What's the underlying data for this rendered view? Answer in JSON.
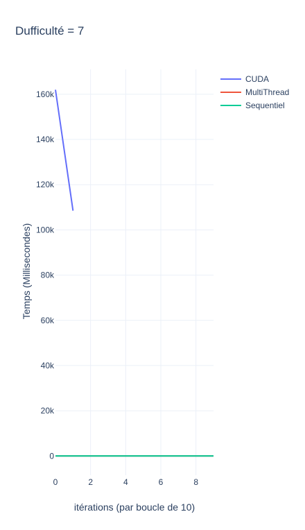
{
  "chart_data": {
    "type": "line",
    "title": "Dufficulté = 7",
    "xlabel": "itérations (par boucle de 10)",
    "ylabel": "Temps (Millisecondes)",
    "xlim": [
      0,
      9
    ],
    "ylim": [
      -8500,
      171000
    ],
    "xticks": [
      0,
      2,
      4,
      6,
      8
    ],
    "xtick_labels": [
      "0",
      "2",
      "4",
      "6",
      "8"
    ],
    "yticks": [
      0,
      20000,
      40000,
      60000,
      80000,
      100000,
      120000,
      140000,
      160000
    ],
    "ytick_labels": [
      "0",
      "20k",
      "40k",
      "60k",
      "80k",
      "100k",
      "120k",
      "140k",
      "160k"
    ],
    "grid": true,
    "legend_position": "top-right",
    "series": [
      {
        "name": "CUDA",
        "color": "#636efa",
        "x": [
          0,
          1
        ],
        "y": [
          162000,
          108500
        ]
      },
      {
        "name": "MultiThread",
        "color": "#ef553b",
        "x": [
          0,
          1,
          2,
          3,
          4,
          5,
          6,
          7,
          8,
          9
        ],
        "y": [
          0,
          0,
          0,
          0,
          0,
          0,
          0,
          0,
          0,
          0
        ]
      },
      {
        "name": "Sequentiel",
        "color": "#00cc96",
        "x": [
          0,
          1,
          2,
          3,
          4,
          5,
          6,
          7,
          8,
          9
        ],
        "y": [
          0,
          0,
          0,
          0,
          0,
          0,
          0,
          0,
          0,
          0
        ]
      }
    ]
  }
}
